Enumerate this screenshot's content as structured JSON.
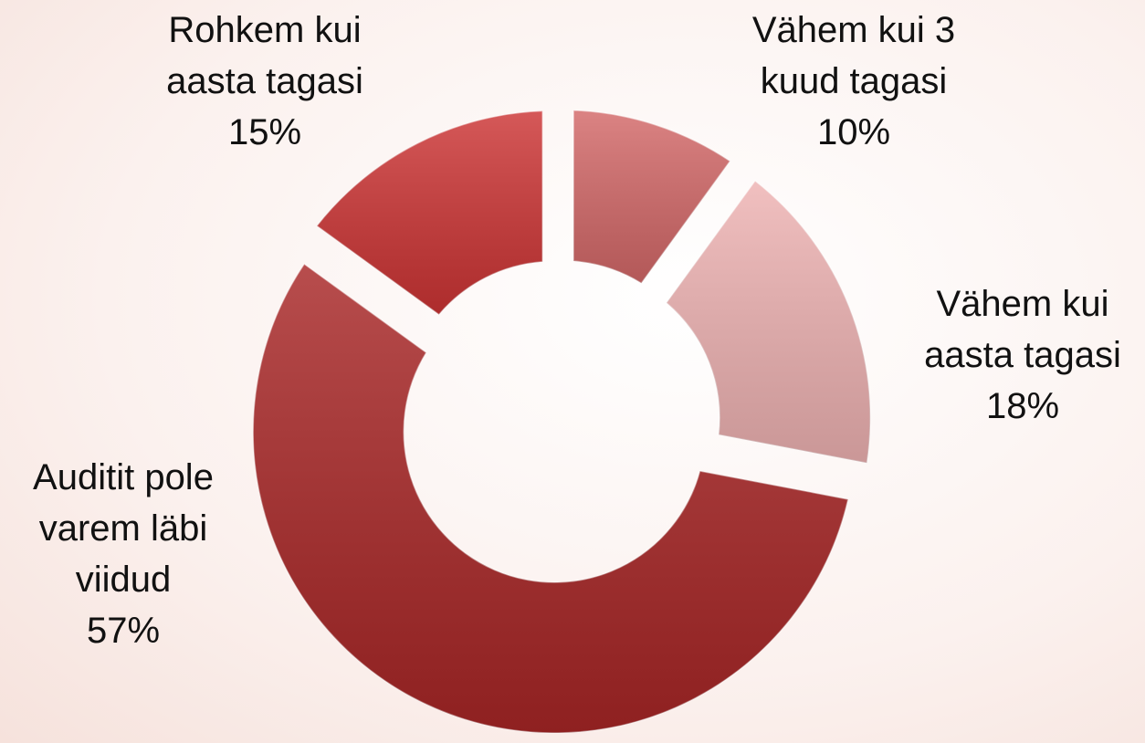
{
  "chart_data": {
    "type": "donut",
    "categories": [
      "Vähem kui 3 kuud tagasi",
      "Vähem kui aasta tagasi",
      "Auditit pole varem läbi viidud",
      "Rohkem kui aasta tagasi"
    ],
    "values": [
      10,
      18,
      57,
      15
    ],
    "value_labels": [
      "10%",
      "18%",
      "57%",
      "15%"
    ],
    "colors": [
      "#d36868",
      "#eeb2b2",
      "#a82626",
      "#cc3434"
    ]
  }
}
